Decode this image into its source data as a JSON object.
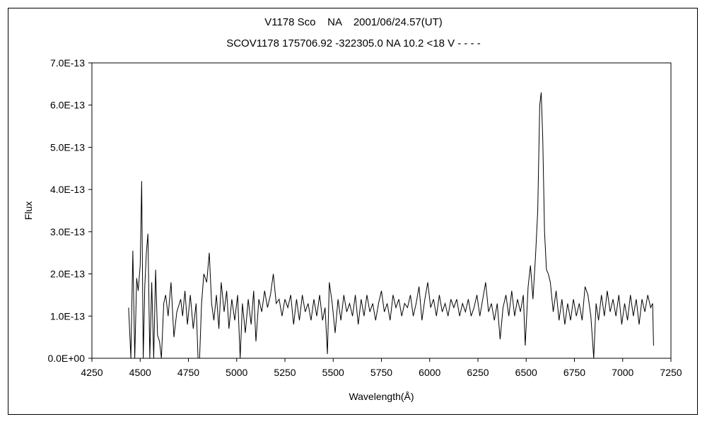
{
  "chart_data": {
    "type": "line",
    "title": "V1178 Sco    NA    2001/06/24.57(UT)",
    "subtitle": "SCOV1178 175706.92 -322305.0 NA 10.2 <18 V - - - -",
    "xlabel": "Wavelength(Å)",
    "ylabel": "Flux",
    "xlim": [
      4250,
      7250
    ],
    "ylim": [
      0,
      7e-13
    ],
    "x_ticks": [
      4250,
      4500,
      4750,
      5000,
      5250,
      5500,
      5750,
      6000,
      6250,
      6500,
      6750,
      7000,
      7250
    ],
    "x_tick_labels": [
      "4250",
      "4500",
      "4750",
      "5000",
      "5250",
      "5500",
      "5750",
      "6000",
      "6250",
      "6500",
      "6750",
      "7000",
      "7250"
    ],
    "y_tick_labels": [
      "0.0E+00",
      "1.0E-13",
      "2.0E-13",
      "3.0E-13",
      "4.0E-13",
      "5.0E-13",
      "6.0E-13",
      "7.0E-13"
    ],
    "y_ticks": [
      0,
      1e-13,
      2e-13,
      3e-13,
      4e-13,
      5e-13,
      6e-13,
      7e-13
    ],
    "grid": false,
    "series": [
      {
        "line_color": "#000000",
        "points": [
          [
            4440,
            1.2e-13
          ],
          [
            4452,
            0.0
          ],
          [
            4462,
            2.55e-13
          ],
          [
            4472,
            0.0
          ],
          [
            4482,
            1.9e-13
          ],
          [
            4490,
            1.6e-13
          ],
          [
            4500,
            2.2e-13
          ],
          [
            4508,
            4.2e-13
          ],
          [
            4516,
            0.0
          ],
          [
            4524,
            1.7e-13
          ],
          [
            4532,
            2.5e-13
          ],
          [
            4540,
            2.95e-13
          ],
          [
            4550,
            0.0
          ],
          [
            4560,
            1.8e-13
          ],
          [
            4570,
            0.0
          ],
          [
            4580,
            2.1e-13
          ],
          [
            4590,
            5.5e-14
          ],
          [
            4600,
            4e-14
          ],
          [
            4610,
            0.0
          ],
          [
            4622,
            1.3e-13
          ],
          [
            4632,
            1.5e-13
          ],
          [
            4645,
            1e-13
          ],
          [
            4660,
            1.8e-13
          ],
          [
            4675,
            5e-14
          ],
          [
            4690,
            1.1e-13
          ],
          [
            4710,
            1.4e-13
          ],
          [
            4720,
            1e-13
          ],
          [
            4732,
            1.6e-13
          ],
          [
            4745,
            8e-14
          ],
          [
            4760,
            1.5e-13
          ],
          [
            4775,
            7e-14
          ],
          [
            4790,
            1.3e-13
          ],
          [
            4800,
            0.0
          ],
          [
            4808,
            0.0
          ],
          [
            4818,
            1.3e-13
          ],
          [
            4830,
            2e-13
          ],
          [
            4845,
            1.8e-13
          ],
          [
            4858,
            2.5e-13
          ],
          [
            4870,
            1.3e-13
          ],
          [
            4882,
            9e-14
          ],
          [
            4895,
            1.5e-13
          ],
          [
            4908,
            7e-14
          ],
          [
            4920,
            1.8e-13
          ],
          [
            4935,
            1.1e-13
          ],
          [
            4948,
            1.6e-13
          ],
          [
            4960,
            7e-14
          ],
          [
            4975,
            1.4e-13
          ],
          [
            4990,
            9e-14
          ],
          [
            5005,
            1.5e-13
          ],
          [
            5018,
            0.0
          ],
          [
            5030,
            1.3e-13
          ],
          [
            5045,
            6e-14
          ],
          [
            5060,
            1.4e-13
          ],
          [
            5075,
            8e-14
          ],
          [
            5088,
            1.6e-13
          ],
          [
            5100,
            4e-14
          ],
          [
            5115,
            1.4e-13
          ],
          [
            5130,
            1.1e-13
          ],
          [
            5145,
            1.6e-13
          ],
          [
            5160,
            1.2e-13
          ],
          [
            5175,
            1.5e-13
          ],
          [
            5190,
            2e-13
          ],
          [
            5205,
            1.3e-13
          ],
          [
            5220,
            1.4e-13
          ],
          [
            5235,
            1e-13
          ],
          [
            5250,
            1.4e-13
          ],
          [
            5265,
            1.2e-13
          ],
          [
            5280,
            1.5e-13
          ],
          [
            5295,
            8e-14
          ],
          [
            5310,
            1.4e-13
          ],
          [
            5325,
            9e-14
          ],
          [
            5340,
            1.5e-13
          ],
          [
            5355,
            1.1e-13
          ],
          [
            5370,
            1.3e-13
          ],
          [
            5385,
            9e-14
          ],
          [
            5400,
            1.4e-13
          ],
          [
            5415,
            1e-13
          ],
          [
            5430,
            1.5e-13
          ],
          [
            5445,
            9e-14
          ],
          [
            5458,
            1.2e-13
          ],
          [
            5470,
            1e-14
          ],
          [
            5480,
            1.8e-13
          ],
          [
            5495,
            1.3e-13
          ],
          [
            5510,
            6e-14
          ],
          [
            5525,
            1.4e-13
          ],
          [
            5540,
            9e-14
          ],
          [
            5555,
            1.5e-13
          ],
          [
            5570,
            1.1e-13
          ],
          [
            5585,
            1.3e-13
          ],
          [
            5600,
            1e-13
          ],
          [
            5615,
            1.5e-13
          ],
          [
            5630,
            8e-14
          ],
          [
            5645,
            1.4e-13
          ],
          [
            5660,
            1e-13
          ],
          [
            5675,
            1.5e-13
          ],
          [
            5690,
            1.1e-13
          ],
          [
            5705,
            1.3e-13
          ],
          [
            5720,
            9e-14
          ],
          [
            5735,
            1.3e-13
          ],
          [
            5750,
            1.6e-13
          ],
          [
            5765,
            1.1e-13
          ],
          [
            5780,
            1.3e-13
          ],
          [
            5795,
            9e-14
          ],
          [
            5810,
            1.5e-13
          ],
          [
            5825,
            1.2e-13
          ],
          [
            5840,
            1.4e-13
          ],
          [
            5855,
            1e-13
          ],
          [
            5870,
            1.3e-13
          ],
          [
            5885,
            1.2e-13
          ],
          [
            5900,
            1.5e-13
          ],
          [
            5915,
            1e-13
          ],
          [
            5930,
            1.3e-13
          ],
          [
            5945,
            1.7e-13
          ],
          [
            5960,
            9e-14
          ],
          [
            5975,
            1.4e-13
          ],
          [
            5990,
            1.8e-13
          ],
          [
            6005,
            1.2e-13
          ],
          [
            6020,
            1.4e-13
          ],
          [
            6035,
            1e-13
          ],
          [
            6050,
            1.5e-13
          ],
          [
            6065,
            1.1e-13
          ],
          [
            6080,
            1.3e-13
          ],
          [
            6095,
            1e-13
          ],
          [
            6110,
            1.4e-13
          ],
          [
            6125,
            1.2e-13
          ],
          [
            6140,
            1.4e-13
          ],
          [
            6155,
            1e-13
          ],
          [
            6170,
            1.3e-13
          ],
          [
            6185,
            1.1e-13
          ],
          [
            6200,
            1.4e-13
          ],
          [
            6215,
            1e-13
          ],
          [
            6230,
            1.2e-13
          ],
          [
            6245,
            1.5e-13
          ],
          [
            6260,
            1e-13
          ],
          [
            6275,
            1.4e-13
          ],
          [
            6290,
            1.8e-13
          ],
          [
            6305,
            1.1e-13
          ],
          [
            6320,
            1.3e-13
          ],
          [
            6335,
            9e-14
          ],
          [
            6350,
            1.3e-13
          ],
          [
            6365,
            4.5e-14
          ],
          [
            6380,
            1.2e-13
          ],
          [
            6395,
            1.5e-13
          ],
          [
            6410,
            1e-13
          ],
          [
            6425,
            1.6e-13
          ],
          [
            6440,
            1e-13
          ],
          [
            6455,
            1.4e-13
          ],
          [
            6470,
            1.1e-13
          ],
          [
            6485,
            1.5e-13
          ],
          [
            6495,
            3e-14
          ],
          [
            6510,
            1.7e-13
          ],
          [
            6522,
            2.2e-13
          ],
          [
            6535,
            1.4e-13
          ],
          [
            6548,
            2.4e-13
          ],
          [
            6560,
            3.5e-13
          ],
          [
            6570,
            6e-13
          ],
          [
            6578,
            6.3e-13
          ],
          [
            6586,
            5.2e-13
          ],
          [
            6595,
            3e-13
          ],
          [
            6605,
            2.1e-13
          ],
          [
            6615,
            2e-13
          ],
          [
            6625,
            1.8e-13
          ],
          [
            6640,
            1.1e-13
          ],
          [
            6655,
            1.6e-13
          ],
          [
            6670,
            9e-14
          ],
          [
            6685,
            1.4e-13
          ],
          [
            6700,
            8e-14
          ],
          [
            6715,
            1.3e-13
          ],
          [
            6730,
            9e-14
          ],
          [
            6745,
            1.4e-13
          ],
          [
            6760,
            1e-13
          ],
          [
            6775,
            1.3e-13
          ],
          [
            6790,
            9e-14
          ],
          [
            6805,
            1.7e-13
          ],
          [
            6820,
            1.5e-13
          ],
          [
            6835,
            1e-13
          ],
          [
            6850,
            0.0
          ],
          [
            6862,
            1.3e-13
          ],
          [
            6875,
            9e-14
          ],
          [
            6890,
            1.5e-13
          ],
          [
            6905,
            1e-13
          ],
          [
            6920,
            1.6e-13
          ],
          [
            6935,
            1.1e-13
          ],
          [
            6950,
            1.4e-13
          ],
          [
            6965,
            1e-13
          ],
          [
            6980,
            1.5e-13
          ],
          [
            6995,
            8e-14
          ],
          [
            7010,
            1.3e-13
          ],
          [
            7025,
            9e-14
          ],
          [
            7040,
            1.5e-13
          ],
          [
            7055,
            1e-13
          ],
          [
            7070,
            1.4e-13
          ],
          [
            7085,
            8e-14
          ],
          [
            7100,
            1.4e-13
          ],
          [
            7115,
            1.1e-13
          ],
          [
            7130,
            1.5e-13
          ],
          [
            7145,
            1.2e-13
          ],
          [
            7155,
            1.3e-13
          ],
          [
            7160,
            3e-14
          ]
        ]
      }
    ]
  }
}
